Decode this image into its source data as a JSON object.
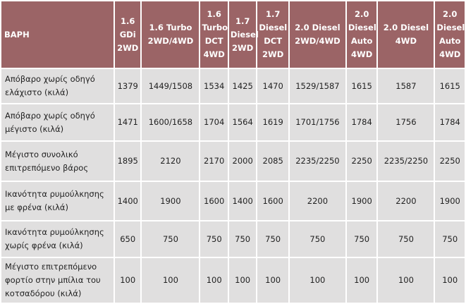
{
  "table": {
    "headers": [
      "ΒΑΡΗ",
      "1.6\nGDi\n2WD",
      "1.6 Turbo\n2WD/4WD",
      "1.6\nTurbo\nDCT\n4WD",
      "1.7\nDiesel\n2WD",
      "1.7\nDiesel\nDCT\n2WD",
      "2.0 Diesel\n2WD/4WD",
      "2.0\nDiesel\nAuto\n4WD",
      "2.0 Diesel\n4WD",
      "2.0\nDiesel\nAuto\n4WD"
    ],
    "rows": [
      {
        "label": "Απόβαρο χωρίς οδηγό ελάχιστο (κιλά)",
        "cells": [
          "1379",
          "1449/1508",
          "1534",
          "1425",
          "1470",
          "1529/1587",
          "1615",
          "1587",
          "1615"
        ]
      },
      {
        "label": "Απόβαρο χωρίς οδηγό μέγιστο (κιλά)",
        "cells": [
          "1471",
          "1600/1658",
          "1704",
          "1564",
          "1619",
          "1701/1756",
          "1784",
          "1756",
          "1784"
        ]
      },
      {
        "label": "Μέγιστο συνολικό επιτρεπόμενο βάρος",
        "cells": [
          "1895",
          "2120",
          "2170",
          "2000",
          "2085",
          "2235/2250",
          "2250",
          "2235/2250",
          "2250"
        ]
      },
      {
        "label": "Ικανότητα ρυμούλκησης με φρένα (κιλά)",
        "cells": [
          "1400",
          "1900",
          "1600",
          "1400",
          "1600",
          "2200",
          "1900",
          "2200",
          "1900"
        ]
      },
      {
        "label": "Ικανότητα ρυμούλκησης χωρίς φρένα (κιλά)",
        "cells": [
          "650",
          "750",
          "750",
          "750",
          "750",
          "750",
          "750",
          "750",
          "750"
        ]
      },
      {
        "label": "Μέγιστο επιτρεπόμενο φορτίο στην μπίλια του κοτσαδόρου (κιλά)",
        "cells": [
          "100",
          "100",
          "100",
          "100",
          "100",
          "100",
          "100",
          "100",
          "100"
        ]
      }
    ]
  }
}
